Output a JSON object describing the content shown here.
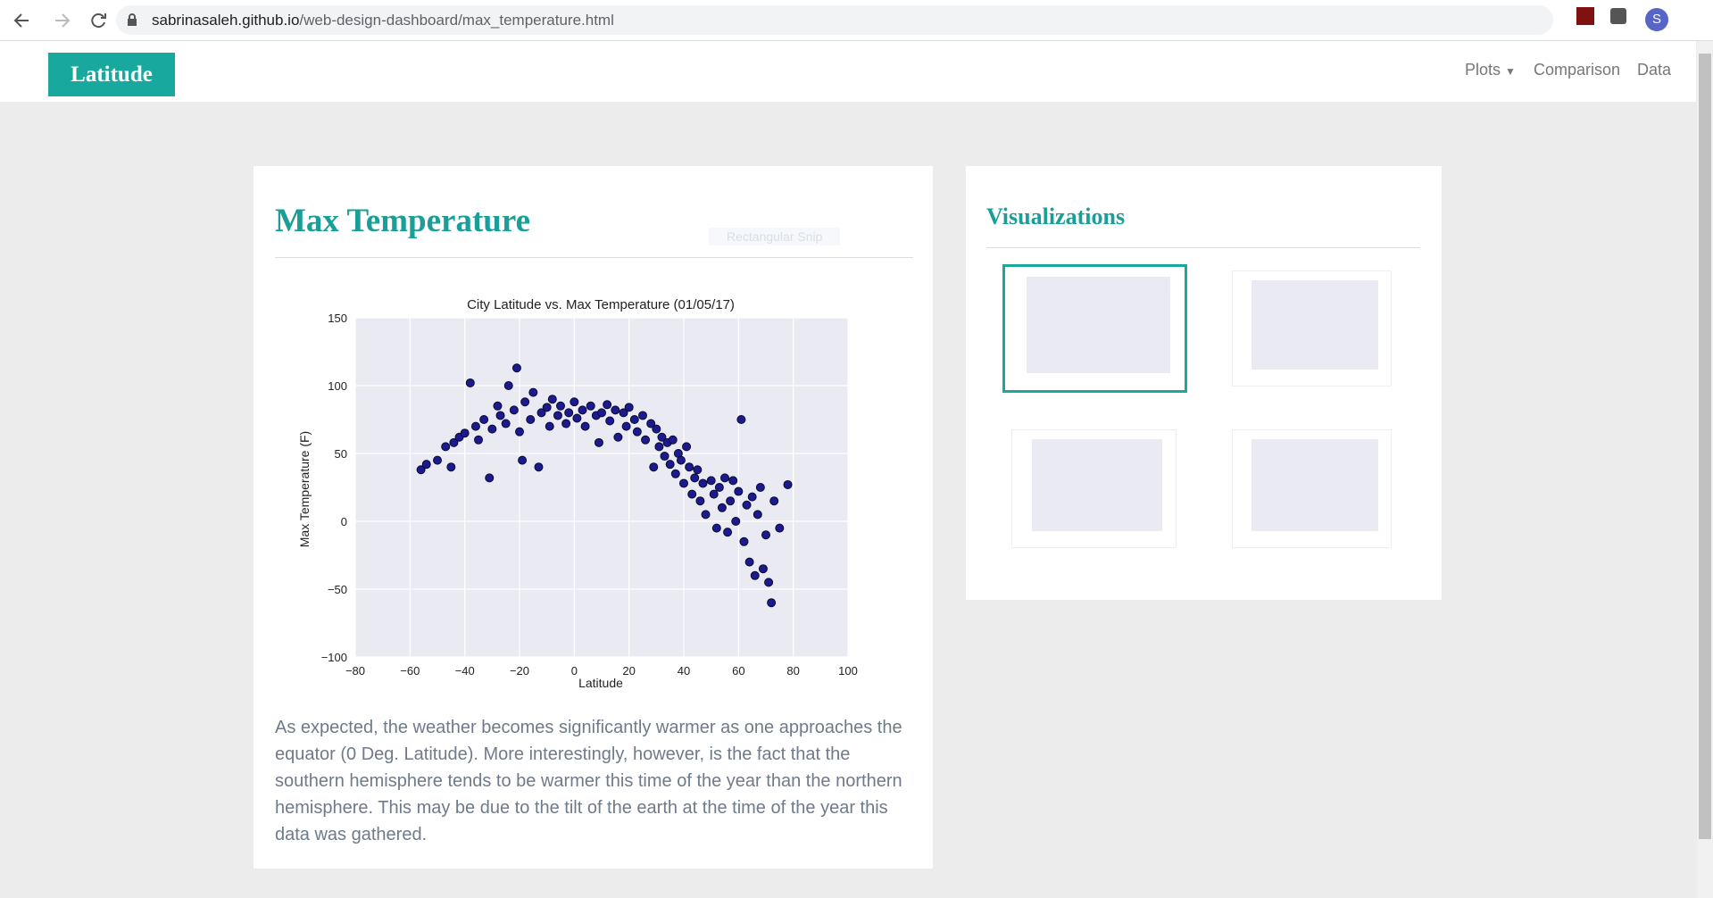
{
  "browser": {
    "url_host": "sabrinasaleh.github.io",
    "url_path": "/web-design-dashboard/max_temperature.html",
    "avatar": "S"
  },
  "navbar": {
    "brand": "Latitude",
    "links": [
      "Plots",
      "Comparison",
      "Data"
    ]
  },
  "overlay": {
    "snip": "Rectangular Snip"
  },
  "main": {
    "title": "Max Temperature",
    "paragraph": "As expected, the weather becomes significantly warmer as one approaches the equator (0 Deg. Latitude). More interestingly, however, is the fact that the southern hemisphere tends to be warmer this time of the year than the northern hemisphere. This may be due to the tilt of the earth at the time of the year this data was gathered."
  },
  "sidebar": {
    "title": "Visualizations"
  },
  "chart_data": {
    "type": "scatter",
    "title": "City Latitude vs. Max Temperature (01/05/17)",
    "x_label": "Latitude",
    "y_label": "Max Temperature (F)",
    "color": "#1b1b8f",
    "grid": true,
    "xlim": [
      -80,
      100
    ],
    "xticks": [
      {
        "value": -80,
        "label": "−80"
      },
      {
        "value": -60,
        "label": "−60"
      },
      {
        "value": -40,
        "label": "−40"
      },
      {
        "value": -20,
        "label": "−20"
      },
      0,
      20,
      40,
      60,
      80,
      100
    ],
    "ylim": [
      -100,
      150
    ],
    "yticks": [
      {
        "value": -100,
        "label": "−100"
      },
      {
        "value": -50,
        "label": "−50"
      },
      0,
      50,
      100,
      150
    ],
    "x": [
      -56,
      -54,
      -50,
      -47,
      -45,
      -44,
      -42,
      -40,
      -38,
      -36,
      -35,
      -33,
      -31,
      -30,
      -28,
      -27,
      -25,
      -24,
      -22,
      -21,
      -20,
      -19,
      -18,
      -16,
      -15,
      -13,
      -12,
      -10,
      -9,
      -8,
      -6,
      -5,
      -3,
      -2,
      0,
      1,
      3,
      4,
      6,
      8,
      9,
      10,
      12,
      13,
      15,
      16,
      18,
      19,
      20,
      22,
      23,
      25,
      26,
      28,
      29,
      30,
      31,
      32,
      33,
      34,
      35,
      36,
      37,
      38,
      39,
      40,
      41,
      42,
      43,
      44,
      45,
      46,
      47,
      48,
      50,
      51,
      52,
      53,
      54,
      55,
      56,
      57,
      58,
      59,
      60,
      61,
      62,
      63,
      64,
      65,
      66,
      67,
      68,
      69,
      70,
      71,
      72,
      73,
      75,
      78
    ],
    "y": [
      38,
      42,
      45,
      55,
      40,
      58,
      62,
      65,
      102,
      70,
      60,
      75,
      32,
      68,
      85,
      78,
      72,
      100,
      82,
      113,
      66,
      45,
      88,
      75,
      95,
      40,
      80,
      84,
      70,
      90,
      78,
      85,
      72,
      80,
      88,
      76,
      82,
      70,
      85,
      78,
      58,
      80,
      86,
      74,
      82,
      62,
      80,
      70,
      84,
      75,
      66,
      78,
      60,
      72,
      40,
      68,
      55,
      62,
      48,
      58,
      42,
      60,
      35,
      50,
      45,
      28,
      55,
      40,
      20,
      32,
      38,
      15,
      28,
      5,
      30,
      20,
      -5,
      25,
      10,
      32,
      -8,
      15,
      30,
      0,
      22,
      75,
      -15,
      12,
      -30,
      18,
      -40,
      5,
      25,
      -35,
      -10,
      -45,
      -60,
      15,
      -5,
      27
    ]
  }
}
